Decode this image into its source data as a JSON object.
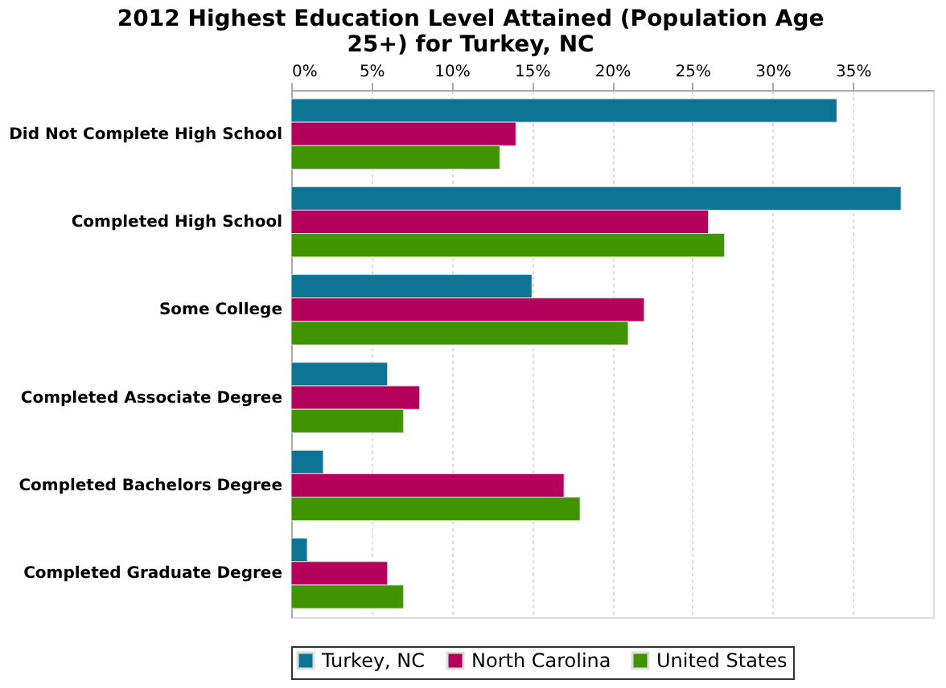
{
  "chart_data": {
    "type": "bar",
    "orientation": "horizontal",
    "title": [
      "2012 Highest Education Level Attained (Population Age",
      "25+) for Turkey, NC"
    ],
    "categories": [
      "Did Not Complete High School",
      "Completed High School",
      "Some College",
      "Completed Associate Degree",
      "Completed Bachelors Degree",
      "Completed Graduate Degree"
    ],
    "series": [
      {
        "name": "Turkey, NC",
        "color": "#0e7494",
        "values": [
          34,
          38,
          15,
          6,
          2,
          1
        ]
      },
      {
        "name": "North Carolina",
        "color": "#b5005b",
        "values": [
          14,
          26,
          22,
          8,
          17,
          6
        ]
      },
      {
        "name": "United States",
        "color": "#3f9400",
        "values": [
          13,
          27,
          21,
          7,
          18,
          7
        ]
      }
    ],
    "xlim": [
      0,
      40
    ],
    "xticks": [
      {
        "value": 0,
        "label": "0%"
      },
      {
        "value": 5,
        "label": "5%"
      },
      {
        "value": 10,
        "label": "10%"
      },
      {
        "value": 15,
        "label": "15%"
      },
      {
        "value": 20,
        "label": "20%"
      },
      {
        "value": 25,
        "label": "25%"
      },
      {
        "value": 30,
        "label": "30%"
      },
      {
        "value": 35,
        "label": "35%"
      }
    ],
    "grid": "x",
    "legend": "bottom"
  }
}
